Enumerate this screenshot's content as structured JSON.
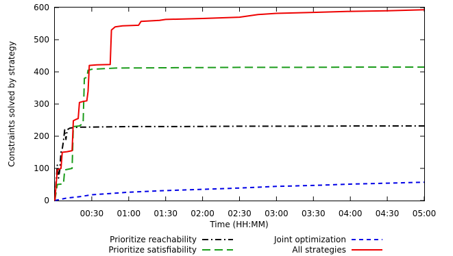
{
  "chart_data": {
    "type": "line",
    "title": "",
    "xlabel": "Time (HH:MM)",
    "ylabel": "Constraints solved by strategy",
    "xunit": "minutes",
    "xlim": [
      0,
      300
    ],
    "ylim": [
      0,
      600
    ],
    "x_ticks": [
      {
        "value": 30,
        "label": "00:30"
      },
      {
        "value": 60,
        "label": "01:00"
      },
      {
        "value": 90,
        "label": "01:30"
      },
      {
        "value": 120,
        "label": "02:00"
      },
      {
        "value": 150,
        "label": "02:30"
      },
      {
        "value": 180,
        "label": "03:00"
      },
      {
        "value": 210,
        "label": "03:30"
      },
      {
        "value": 240,
        "label": "04:00"
      },
      {
        "value": 270,
        "label": "04:30"
      },
      {
        "value": 300,
        "label": "05:00"
      }
    ],
    "y_ticks": [
      {
        "value": 0,
        "label": "0"
      },
      {
        "value": 100,
        "label": "100"
      },
      {
        "value": 200,
        "label": "200"
      },
      {
        "value": 300,
        "label": "300"
      },
      {
        "value": 400,
        "label": "400"
      },
      {
        "value": 500,
        "label": "500"
      },
      {
        "value": 600,
        "label": "600"
      }
    ],
    "legend_position": "bottom",
    "series": [
      {
        "name": "Prioritize reachability",
        "color": "#000000",
        "dash": "dashdot",
        "points": [
          [
            0,
            0
          ],
          [
            1,
            60
          ],
          [
            2,
            110
          ],
          [
            3,
            70
          ],
          [
            4,
            95
          ],
          [
            5,
            150
          ],
          [
            6,
            160
          ],
          [
            7,
            185
          ],
          [
            8,
            220
          ],
          [
            9,
            190
          ],
          [
            10,
            220
          ],
          [
            12,
            225
          ],
          [
            15,
            227
          ],
          [
            20,
            228
          ],
          [
            40,
            229
          ],
          [
            60,
            230
          ],
          [
            100,
            230
          ],
          [
            150,
            231
          ],
          [
            200,
            231
          ],
          [
            250,
            232
          ],
          [
            300,
            232
          ]
        ]
      },
      {
        "name": "Prioritize satisfiability",
        "color": "#1a9b1a",
        "dash": "dash",
        "points": [
          [
            0,
            0
          ],
          [
            2,
            50
          ],
          [
            7,
            52
          ],
          [
            8,
            95
          ],
          [
            14,
            100
          ],
          [
            15,
            230
          ],
          [
            20,
            232
          ],
          [
            23,
            240
          ],
          [
            24,
            380
          ],
          [
            26,
            383
          ],
          [
            27,
            405
          ],
          [
            30,
            408
          ],
          [
            40,
            410
          ],
          [
            50,
            412
          ],
          [
            100,
            413
          ],
          [
            150,
            414
          ],
          [
            200,
            414
          ],
          [
            250,
            415
          ],
          [
            300,
            415
          ]
        ]
      },
      {
        "name": "Joint optimization",
        "color": "#0000e6",
        "dash": "shortdash",
        "points": [
          [
            0,
            0
          ],
          [
            10,
            8
          ],
          [
            20,
            12
          ],
          [
            30,
            18
          ],
          [
            45,
            22
          ],
          [
            60,
            26
          ],
          [
            90,
            31
          ],
          [
            120,
            35
          ],
          [
            150,
            39
          ],
          [
            180,
            44
          ],
          [
            210,
            47
          ],
          [
            240,
            51
          ],
          [
            270,
            54
          ],
          [
            300,
            57
          ]
        ]
      },
      {
        "name": "All strategies",
        "color": "#ee0000",
        "dash": "solid",
        "points": [
          [
            0,
            0
          ],
          [
            2,
            95
          ],
          [
            5,
            100
          ],
          [
            6,
            150
          ],
          [
            10,
            152
          ],
          [
            14,
            155
          ],
          [
            15,
            248
          ],
          [
            17,
            252
          ],
          [
            19,
            255
          ],
          [
            20,
            305
          ],
          [
            23,
            308
          ],
          [
            26,
            310
          ],
          [
            27,
            340
          ],
          [
            28,
            420
          ],
          [
            34,
            422
          ],
          [
            45,
            423
          ],
          [
            46,
            530
          ],
          [
            49,
            540
          ],
          [
            55,
            543
          ],
          [
            68,
            545
          ],
          [
            70,
            557
          ],
          [
            85,
            560
          ],
          [
            90,
            563
          ],
          [
            120,
            566
          ],
          [
            150,
            570
          ],
          [
            165,
            578
          ],
          [
            180,
            582
          ],
          [
            210,
            585
          ],
          [
            240,
            588
          ],
          [
            270,
            590
          ],
          [
            300,
            593
          ]
        ]
      }
    ]
  }
}
